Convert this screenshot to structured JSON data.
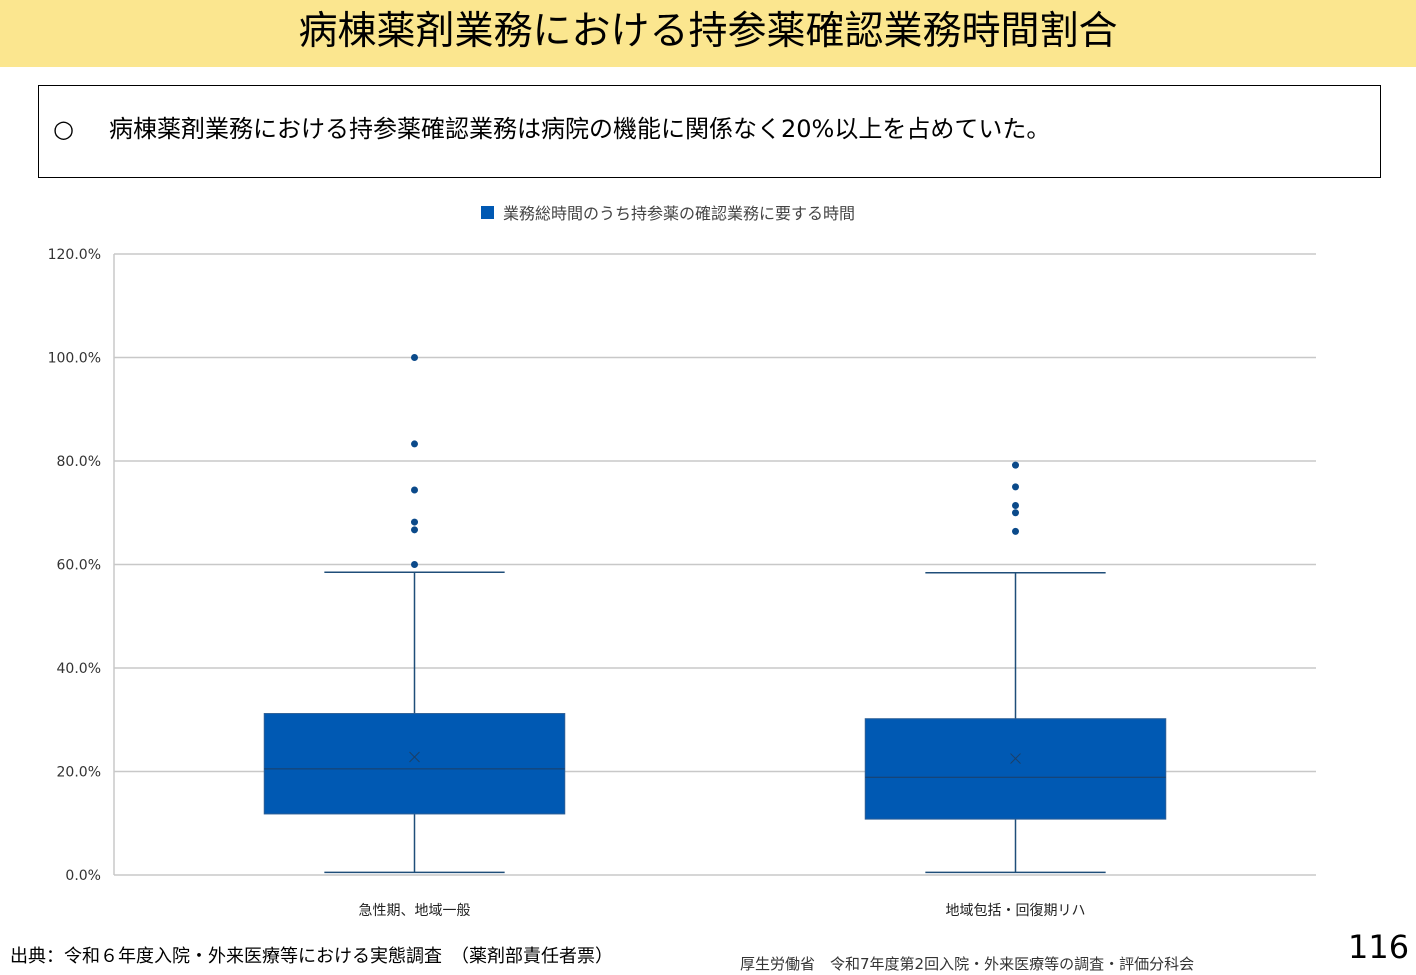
{
  "slide": {
    "title": "病棟薬剤業務における持参薬確認業務時間割合",
    "summary_bullet": "○",
    "summary": "病棟薬剤業務における持参薬確認業務は病院の機能に関係なく20%以上を占めていた。",
    "source": "出典：令和６年度入院・外来医療等における実態調査　（薬剤部責任者票）",
    "organization": "厚生労働省　令和7年度第2回入院・外来医療等の調査・評価分科会",
    "page_number": "116"
  },
  "chart_data": {
    "type": "boxplot",
    "legend": "業務総時間のうち持参薬の確認業務に要する時間",
    "legend_position": "top-center",
    "series_color": "#0059b3",
    "y_ticks": [
      "120.0%",
      "100.0%",
      "80.0%",
      "60.0%",
      "40.0%",
      "20.0%",
      "0.0%"
    ],
    "ylim": [
      0,
      120
    ],
    "y_unit": "%",
    "grid": true,
    "categories": [
      "急性期、地域一般",
      "地域包括・回復期リハ"
    ],
    "boxes": [
      {
        "category": "急性期、地域一般",
        "min": 0.5,
        "q1": 11.8,
        "median": 20.5,
        "q3": 31.2,
        "max": 58.5,
        "mean": 22.8,
        "outliers": [
          100.0,
          83.3,
          74.4,
          68.2,
          66.7,
          60.0
        ]
      },
      {
        "category": "地域包括・回復期リハ",
        "min": 0.5,
        "q1": 10.8,
        "median": 18.9,
        "q3": 30.2,
        "max": 58.4,
        "mean": 22.5,
        "outliers": [
          79.2,
          75.0,
          71.4,
          70.0,
          66.4
        ]
      }
    ]
  }
}
